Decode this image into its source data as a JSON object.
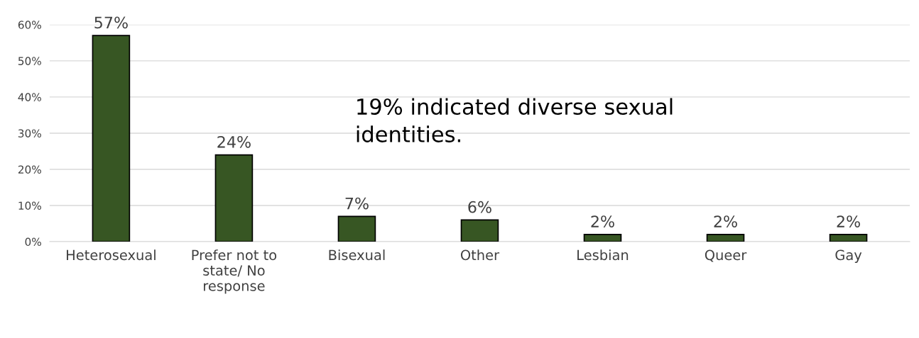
{
  "chart_data": {
    "type": "bar",
    "categories": [
      "Heterosexual",
      "Prefer not to state/ No response",
      "Bisexual",
      "Other",
      "Lesbian",
      "Queer",
      "Gay"
    ],
    "values": [
      57,
      24,
      7,
      6,
      2,
      2,
      2
    ],
    "value_labels": [
      "57%",
      "24%",
      "7%",
      "6%",
      "2%",
      "2%",
      "2%"
    ],
    "color": "#375623",
    "ylim": [
      0,
      60
    ],
    "yticks": [
      {
        "value": 0,
        "label": "0%"
      },
      {
        "value": 10,
        "label": "10%"
      },
      {
        "value": 20,
        "label": "20%"
      },
      {
        "value": 30,
        "label": "30%"
      },
      {
        "value": 40,
        "label": "40%"
      },
      {
        "value": 50,
        "label": "50%"
      },
      {
        "value": 60,
        "label": "60%"
      }
    ],
    "grid": "y",
    "annotations": [
      "19% indicated diverse sexual identities."
    ]
  }
}
